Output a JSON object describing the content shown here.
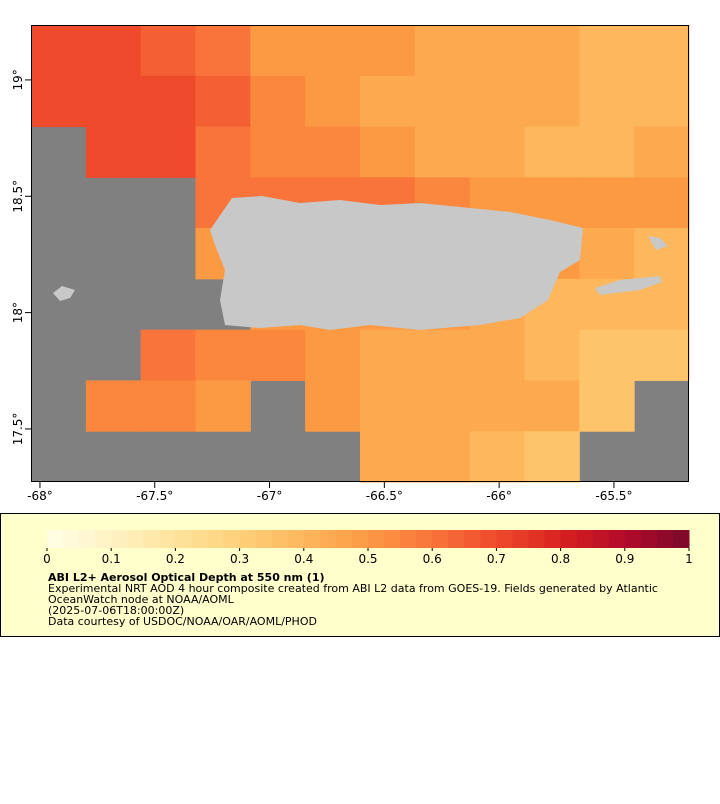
{
  "chart_data": {
    "type": "map",
    "xlim": [
      -68.039,
      -65.173
    ],
    "ylim": [
      17.272,
      19.236
    ],
    "xticks": [
      {
        "value": -68,
        "label": "-68°"
      },
      {
        "value": -67.5,
        "label": "-67.5°"
      },
      {
        "value": -67,
        "label": "-67°"
      },
      {
        "value": -66.5,
        "label": "-66.5°"
      },
      {
        "value": -66,
        "label": "-66°"
      },
      {
        "value": -65.5,
        "label": "-65.5°"
      }
    ],
    "yticks": [
      {
        "value": 17.5,
        "label": "17.5°"
      },
      {
        "value": 18,
        "label": "18°"
      },
      {
        "value": 18.5,
        "label": "18.5°"
      },
      {
        "value": 19,
        "label": "19°"
      }
    ],
    "grid_values": [
      [
        0.7,
        0.7,
        0.65,
        0.6,
        0.5,
        0.5,
        0.5,
        0.45,
        0.45,
        0.45,
        0.4,
        0.4
      ],
      [
        0.7,
        0.7,
        0.7,
        0.65,
        0.55,
        0.5,
        0.45,
        0.45,
        0.45,
        0.45,
        0.4,
        0.4
      ],
      [
        null,
        0.7,
        0.7,
        0.6,
        0.55,
        0.55,
        0.5,
        0.45,
        0.45,
        0.4,
        0.4,
        0.45
      ],
      [
        null,
        null,
        null,
        0.6,
        0.6,
        0.6,
        0.6,
        0.55,
        0.5,
        0.5,
        0.5,
        0.5
      ],
      [
        null,
        null,
        null,
        0.5,
        0.5,
        0.5,
        0.5,
        0.5,
        0.5,
        0.5,
        0.45,
        0.4
      ],
      [
        null,
        null,
        null,
        null,
        0.5,
        0.5,
        0.5,
        0.5,
        0.45,
        0.4,
        0.4,
        0.4
      ],
      [
        null,
        null,
        0.6,
        0.55,
        0.55,
        0.5,
        0.45,
        0.45,
        0.45,
        0.4,
        0.35,
        0.35
      ],
      [
        null,
        0.55,
        0.55,
        0.5,
        null,
        0.5,
        0.45,
        0.45,
        0.45,
        0.45,
        0.35,
        null
      ],
      [
        null,
        null,
        null,
        null,
        null,
        null,
        0.45,
        0.45,
        0.4,
        0.35,
        null,
        null
      ]
    ],
    "nodata_color": "#808080",
    "land_color": "#c8c8c8",
    "colorbar": {
      "lim": [
        0,
        1
      ],
      "ticks": [
        0,
        0.1,
        0.2,
        0.3,
        0.4,
        0.5,
        0.6,
        0.7,
        0.8,
        0.9,
        1
      ],
      "colors": [
        "#fffee6",
        "#fff3c4",
        "#fee39c",
        "#fed07a",
        "#fdb75c",
        "#fc9a44",
        "#f9743a",
        "#ef4a2c",
        "#d8211f",
        "#b20a2a",
        "#7a0a2a"
      ]
    },
    "legend": {
      "title": "ABI L2+ Aerosol Optical Depth at 550 nm (1)",
      "lines": [
        "Experimental NRT AOD 4 hour composite created from ABI L2 data from GOES-19. Fields generated by Atlantic",
        "OceanWatch node at NOAA/AOML",
        "(2025-07-06T18:00:00Z)",
        "Data courtesy of USDOC/NOAA/OAR/AOML/PHOD"
      ]
    }
  }
}
